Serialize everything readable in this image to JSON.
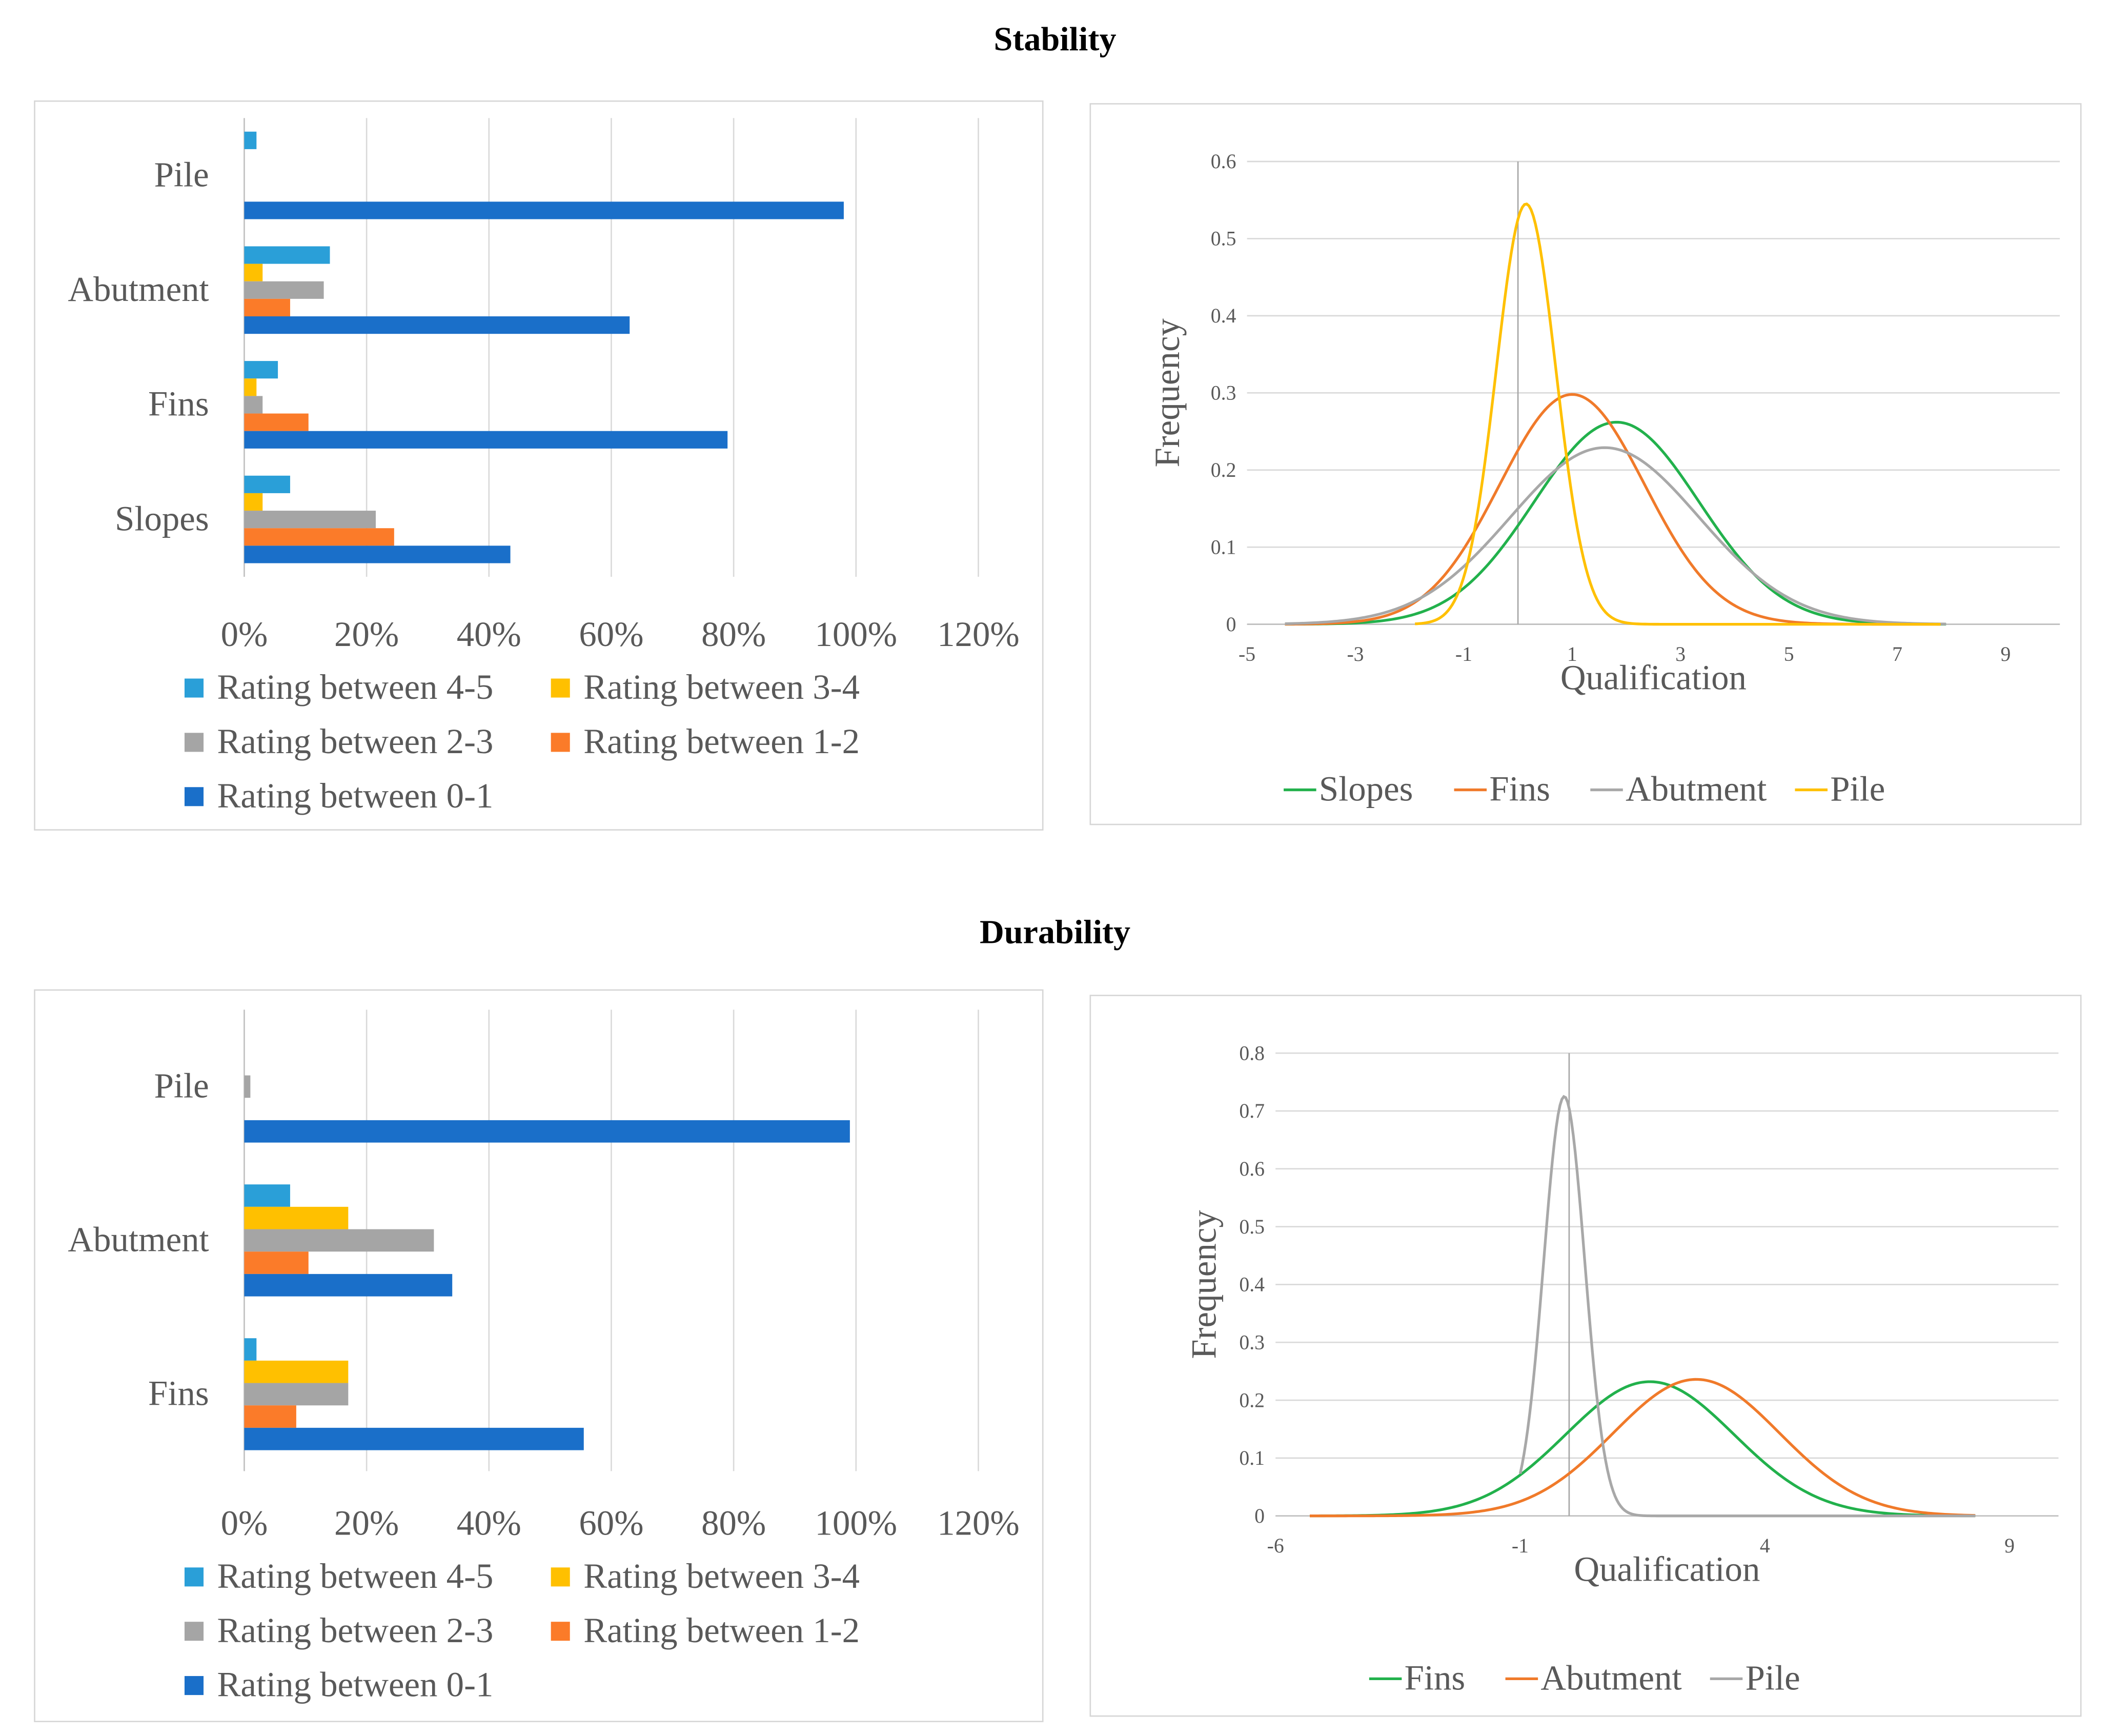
{
  "sections": [
    {
      "title": "Stability",
      "bar_legend": [
        "Rating between 4-5",
        "Rating between 3-4",
        "Rating between 2-3",
        "Rating between 1-2",
        "Rating between 0-1"
      ],
      "line_chart": {
        "xlabel": "Qualification",
        "ylabel": "Frequency",
        "legend": [
          "Slopes",
          "Fins",
          "Abutment",
          "Pile"
        ]
      }
    },
    {
      "title": "Durability",
      "bar_legend": [
        "Rating between 4-5",
        "Rating between 3-4",
        "Rating between 2-3",
        "Rating between 1-2",
        "Rating between 0-1"
      ],
      "line_chart": {
        "xlabel": "Qualification",
        "ylabel": "Frequency",
        "legend": [
          "Fins",
          "Abutment",
          "Pile"
        ]
      }
    }
  ],
  "chart_data": [
    {
      "type": "bar",
      "title": "Stability",
      "orientation": "horizontal",
      "categories": [
        "Slopes",
        "Fins",
        "Abutment",
        "Pile"
      ],
      "series": [
        {
          "name": "Rating between 4-5",
          "color": "#2a9fd8",
          "values": [
            7.5,
            5.5,
            14,
            2
          ]
        },
        {
          "name": "Rating between 3-4",
          "color": "#ffc000",
          "values": [
            3,
            2,
            3,
            0
          ]
        },
        {
          "name": "Rating between 2-3",
          "color": "#a5a5a5",
          "values": [
            21.5,
            3,
            13,
            0
          ]
        },
        {
          "name": "Rating between 1-2",
          "color": "#fb7b29",
          "values": [
            24.5,
            10.5,
            7.5,
            0
          ]
        },
        {
          "name": "Rating between 0-1",
          "color": "#1a6fc9",
          "values": [
            43.5,
            79,
            63,
            98
          ]
        }
      ],
      "xlim": [
        0,
        120
      ],
      "xticks": [
        "0%",
        "20%",
        "40%",
        "60%",
        "80%",
        "100%",
        "120%"
      ],
      "legend_position": "bottom"
    },
    {
      "type": "line",
      "title": "Stability",
      "xlabel": "Qualification",
      "ylabel": "Frequency",
      "xlim": [
        -5,
        10
      ],
      "ylim": [
        0,
        0.6
      ],
      "xticks": [
        -5,
        -3,
        -1,
        1,
        3,
        5,
        7,
        9
      ],
      "yticks": [
        0,
        0.1,
        0.2,
        0.3,
        0.4,
        0.5,
        0.6
      ],
      "vline_x": 0,
      "series": [
        {
          "name": "Slopes",
          "color": "#22b14c",
          "mean": 1.82,
          "sd": 1.52,
          "peak": 0.262,
          "x": [
            -4.3,
            7.9
          ]
        },
        {
          "name": "Fins",
          "color": "#f07a2a",
          "mean": 1.0,
          "sd": 1.34,
          "peak": 0.298,
          "x": [
            -4.3,
            7.8
          ]
        },
        {
          "name": "Abutment",
          "color": "#a8a8a8",
          "mean": 1.6,
          "sd": 1.74,
          "peak": 0.229,
          "x": [
            -4.3,
            7.9
          ]
        },
        {
          "name": "Pile",
          "color": "#ffc000",
          "mean": 0.15,
          "sd": 0.55,
          "peak": 0.545,
          "x": [
            -1.9,
            7.8
          ]
        }
      ],
      "legend_position": "bottom"
    },
    {
      "type": "bar",
      "title": "Durability",
      "orientation": "horizontal",
      "categories": [
        "Fins",
        "Abutment",
        "Pile"
      ],
      "series": [
        {
          "name": "Rating between 4-5",
          "color": "#2a9fd8",
          "values": [
            2,
            7.5,
            0
          ]
        },
        {
          "name": "Rating between 3-4",
          "color": "#ffc000",
          "values": [
            17,
            17,
            0
          ]
        },
        {
          "name": "Rating between 2-3",
          "color": "#a5a5a5",
          "values": [
            17,
            31,
            1
          ]
        },
        {
          "name": "Rating between 1-2",
          "color": "#fb7b29",
          "values": [
            8.5,
            10.5,
            0
          ]
        },
        {
          "name": "Rating between 0-1",
          "color": "#1a6fc9",
          "values": [
            55.5,
            34,
            99
          ]
        }
      ],
      "xlim": [
        0,
        120
      ],
      "xticks": [
        "0%",
        "20%",
        "40%",
        "60%",
        "80%",
        "100%",
        "120%"
      ],
      "legend_position": "bottom"
    },
    {
      "type": "line",
      "title": "Durability",
      "xlabel": "Qualification",
      "ylabel": "Frequency",
      "xlim": [
        -6,
        10
      ],
      "ylim": [
        0,
        0.8
      ],
      "xticks": [
        -6,
        -1,
        4,
        9
      ],
      "yticks": [
        0,
        0.1,
        0.2,
        0.3,
        0.4,
        0.5,
        0.6,
        0.7,
        0.8
      ],
      "vline_x": 0,
      "series": [
        {
          "name": "Fins",
          "color": "#22b14c",
          "mean": 1.65,
          "sd": 1.72,
          "peak": 0.232,
          "x": [
            -5.3,
            8.3
          ]
        },
        {
          "name": "Abutment",
          "color": "#f07a2a",
          "mean": 2.6,
          "sd": 1.7,
          "peak": 0.236,
          "x": [
            -5.3,
            8.3
          ]
        },
        {
          "name": "Pile",
          "color": "#a8a8a8",
          "mean": -0.1,
          "sd": 0.42,
          "peak": 0.725,
          "x": [
            -1.0,
            8.3
          ]
        }
      ],
      "legend_position": "bottom"
    }
  ]
}
